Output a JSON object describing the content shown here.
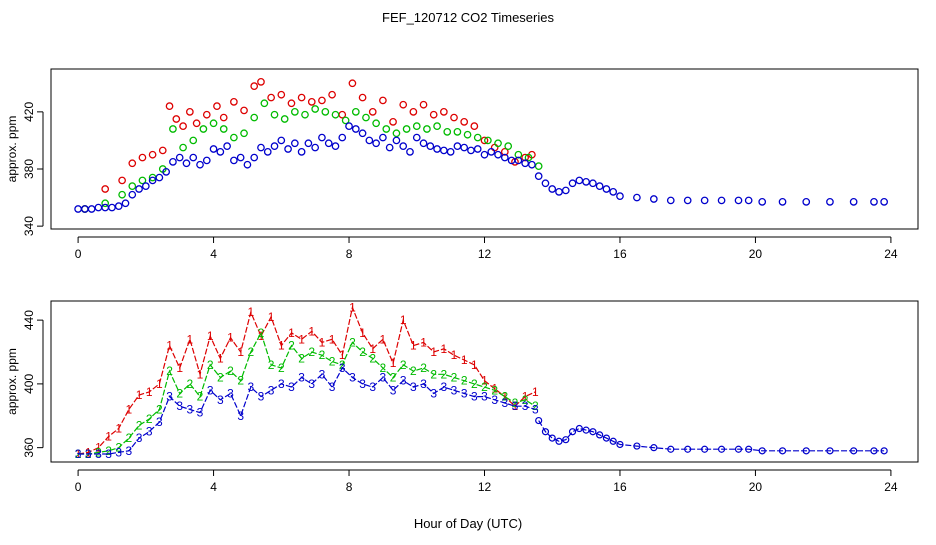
{
  "title": "FEF_120712  CO2 Timeseries",
  "xlabel": "Hour of Day (UTC)",
  "colors": {
    "series1": "#dd0000",
    "series2": "#00bb00",
    "series3": "#0000cc",
    "spike": "#000000",
    "cyan": "#00cccc"
  },
  "chart_data": [
    {
      "type": "scatter",
      "title": "",
      "xlabel": "",
      "ylabel": "approx. ppm",
      "xlim": [
        -0.8,
        24.8
      ],
      "ylim": [
        338,
        450
      ],
      "xticks": [
        0,
        4,
        8,
        12,
        16,
        20,
        24
      ],
      "yticks": [
        340,
        380,
        420
      ],
      "series": [
        {
          "color": "#dd0000",
          "x": [
            0.2,
            0.8,
            1.3,
            1.6,
            1.9,
            2.2,
            2.5,
            2.7,
            2.9,
            3.1,
            3.3,
            3.5,
            3.8,
            4.1,
            4.3,
            4.6,
            4.9,
            5.2,
            5.4,
            5.7,
            6.0,
            6.3,
            6.6,
            6.9,
            7.2,
            7.5,
            7.8,
            8.1,
            8.4,
            8.7,
            9.0,
            9.3,
            9.6,
            9.9,
            10.2,
            10.5,
            10.8,
            11.1,
            11.4,
            11.7,
            12.0,
            12.3,
            12.6,
            12.9,
            13.2,
            13.4
          ],
          "y": [
            352,
            366,
            372,
            384,
            388,
            390,
            393,
            424,
            415,
            410,
            420,
            412,
            418,
            424,
            416,
            427,
            421,
            438,
            441,
            430,
            432,
            426,
            430,
            427,
            428,
            432,
            418,
            440,
            430,
            420,
            428,
            413,
            425,
            420,
            425,
            418,
            420,
            416,
            413,
            410,
            400,
            395,
            392,
            385,
            388,
            390
          ]
        },
        {
          "color": "#00bb00",
          "x": [
            0.2,
            0.8,
            1.3,
            1.6,
            1.9,
            2.2,
            2.5,
            2.8,
            3.1,
            3.4,
            3.7,
            4.0,
            4.3,
            4.6,
            4.9,
            5.2,
            5.5,
            5.8,
            6.1,
            6.4,
            6.7,
            7.0,
            7.3,
            7.6,
            7.9,
            8.2,
            8.5,
            8.8,
            9.1,
            9.4,
            9.7,
            10.0,
            10.3,
            10.6,
            10.9,
            11.2,
            11.5,
            11.8,
            12.1,
            12.4,
            12.7,
            13.0,
            13.3,
            13.6
          ],
          "y": [
            352,
            356,
            362,
            368,
            372,
            374,
            380,
            408,
            395,
            400,
            408,
            412,
            408,
            402,
            405,
            416,
            426,
            418,
            415,
            420,
            418,
            422,
            420,
            418,
            414,
            420,
            416,
            412,
            408,
            405,
            408,
            410,
            408,
            410,
            406,
            406,
            404,
            402,
            400,
            398,
            396,
            390,
            388,
            382
          ]
        },
        {
          "color": "#0000cc",
          "x": [
            0.0,
            0.2,
            0.4,
            0.6,
            0.8,
            1.0,
            1.2,
            1.4,
            1.6,
            1.8,
            2.0,
            2.2,
            2.4,
            2.6,
            2.8,
            3.0,
            3.2,
            3.4,
            3.6,
            3.8,
            4.0,
            4.2,
            4.4,
            4.6,
            4.8,
            5.0,
            5.2,
            5.4,
            5.6,
            5.8,
            6.0,
            6.2,
            6.4,
            6.6,
            6.8,
            7.0,
            7.2,
            7.4,
            7.6,
            7.8,
            8.0,
            8.2,
            8.4,
            8.6,
            8.8,
            9.0,
            9.2,
            9.4,
            9.6,
            9.8,
            10.0,
            10.2,
            10.4,
            10.6,
            10.8,
            11.0,
            11.2,
            11.4,
            11.6,
            11.8,
            12.0,
            12.2,
            12.4,
            12.6,
            12.8,
            13.0,
            13.2,
            13.4,
            13.6,
            13.8,
            14.0,
            14.2,
            14.4,
            14.6,
            14.8,
            15.0,
            15.2,
            15.4,
            15.6,
            15.8,
            16.0,
            16.5,
            17.0,
            17.5,
            18.0,
            18.5,
            19.0,
            19.5,
            19.8,
            20.2,
            20.8,
            21.5,
            22.2,
            22.9,
            23.5,
            23.8
          ],
          "y": [
            352,
            352,
            352,
            353,
            353,
            353,
            354,
            356,
            362,
            366,
            368,
            372,
            374,
            378,
            385,
            388,
            384,
            388,
            383,
            386,
            394,
            392,
            396,
            386,
            388,
            383,
            388,
            395,
            392,
            396,
            400,
            394,
            398,
            392,
            398,
            395,
            402,
            398,
            396,
            402,
            410,
            408,
            405,
            400,
            398,
            402,
            395,
            400,
            396,
            392,
            402,
            398,
            396,
            394,
            393,
            392,
            396,
            395,
            393,
            394,
            390,
            392,
            390,
            388,
            386,
            386,
            384,
            383,
            375,
            370,
            366,
            364,
            365,
            370,
            372,
            371,
            370,
            368,
            366,
            364,
            361,
            360,
            359,
            358,
            358,
            358,
            358,
            358,
            358,
            357,
            357,
            357,
            357,
            357,
            357,
            357
          ]
        }
      ]
    },
    {
      "type": "line",
      "title": "",
      "xlabel": "",
      "ylabel": "approx. ppm",
      "xlim": [
        -0.8,
        24.8
      ],
      "ylim": [
        351,
        452
      ],
      "xticks": [
        0,
        4,
        8,
        12,
        16,
        20,
        24
      ],
      "yticks": [
        360,
        400,
        440
      ],
      "series": [
        {
          "color": "#dd0000",
          "label": "1",
          "x": [
            0.0,
            0.3,
            0.6,
            0.9,
            1.2,
            1.5,
            1.8,
            2.1,
            2.4,
            2.7,
            3.0,
            3.3,
            3.6,
            3.9,
            4.2,
            4.5,
            4.8,
            5.1,
            5.4,
            5.7,
            6.0,
            6.3,
            6.6,
            6.9,
            7.2,
            7.5,
            7.8,
            8.1,
            8.4,
            8.7,
            9.0,
            9.3,
            9.6,
            9.9,
            10.2,
            10.5,
            10.8,
            11.1,
            11.4,
            11.7,
            12.0,
            12.3,
            12.6,
            12.9,
            13.2,
            13.5
          ],
          "y": [
            356,
            357,
            360,
            367,
            372,
            384,
            393,
            395,
            400,
            424,
            410,
            428,
            406,
            430,
            416,
            429,
            420,
            445,
            430,
            442,
            424,
            432,
            428,
            433,
            426,
            428,
            418,
            448,
            432,
            422,
            428,
            413,
            440,
            424,
            426,
            420,
            422,
            418,
            415,
            412,
            402,
            397,
            392,
            386,
            392,
            395
          ]
        },
        {
          "color": "#00bb00",
          "label": "2",
          "x": [
            0.0,
            0.3,
            0.6,
            0.9,
            1.2,
            1.5,
            1.8,
            2.1,
            2.4,
            2.7,
            3.0,
            3.3,
            3.6,
            3.9,
            4.2,
            4.5,
            4.8,
            5.1,
            5.4,
            5.7,
            6.0,
            6.3,
            6.6,
            6.9,
            7.2,
            7.5,
            7.8,
            8.1,
            8.4,
            8.7,
            9.0,
            9.3,
            9.6,
            9.9,
            10.2,
            10.5,
            10.8,
            11.1,
            11.4,
            11.7,
            12.0,
            12.3,
            12.6,
            12.9,
            13.2,
            13.5
          ],
          "y": [
            356,
            356,
            357,
            358,
            360,
            366,
            374,
            378,
            384,
            408,
            394,
            400,
            392,
            412,
            404,
            408,
            402,
            420,
            432,
            412,
            410,
            424,
            416,
            420,
            418,
            414,
            412,
            426,
            420,
            416,
            410,
            404,
            412,
            408,
            410,
            406,
            406,
            404,
            402,
            400,
            398,
            396,
            392,
            388,
            390,
            386
          ]
        },
        {
          "color": "#0000cc",
          "label": "3",
          "x": [
            0.0,
            0.3,
            0.6,
            0.9,
            1.2,
            1.5,
            1.8,
            2.1,
            2.4,
            2.7,
            3.0,
            3.3,
            3.6,
            3.9,
            4.2,
            4.5,
            4.8,
            5.1,
            5.4,
            5.7,
            6.0,
            6.3,
            6.6,
            6.9,
            7.2,
            7.5,
            7.8,
            8.1,
            8.4,
            8.7,
            9.0,
            9.3,
            9.6,
            9.9,
            10.2,
            10.5,
            10.8,
            11.1,
            11.4,
            11.7,
            12.0,
            12.3,
            12.6,
            12.9,
            13.2,
            13.5
          ],
          "y": [
            356,
            356,
            356,
            356,
            357,
            358,
            366,
            370,
            376,
            392,
            386,
            384,
            382,
            396,
            390,
            394,
            380,
            398,
            392,
            396,
            400,
            398,
            404,
            400,
            406,
            398,
            410,
            404,
            400,
            398,
            404,
            396,
            402,
            398,
            400,
            394,
            398,
            396,
            394,
            392,
            392,
            390,
            388,
            386,
            386,
            384
          ]
        },
        {
          "color": "#0000cc",
          "label": "",
          "x": [
            13.6,
            13.8,
            14.0,
            14.2,
            14.4,
            14.6,
            14.8,
            15.0,
            15.2,
            15.4,
            15.6,
            15.8,
            16.0,
            16.5,
            17.0,
            17.5,
            18.0,
            18.5,
            19.0,
            19.5,
            19.8,
            20.2,
            20.8,
            21.5,
            22.2,
            22.9,
            23.5,
            23.8
          ],
          "y": [
            377,
            370,
            366,
            364,
            365,
            370,
            372,
            371,
            370,
            368,
            366,
            364,
            362,
            361,
            360,
            359,
            359,
            359,
            359,
            359,
            359,
            358,
            358,
            358,
            358,
            358,
            358,
            358
          ]
        }
      ]
    }
  ]
}
